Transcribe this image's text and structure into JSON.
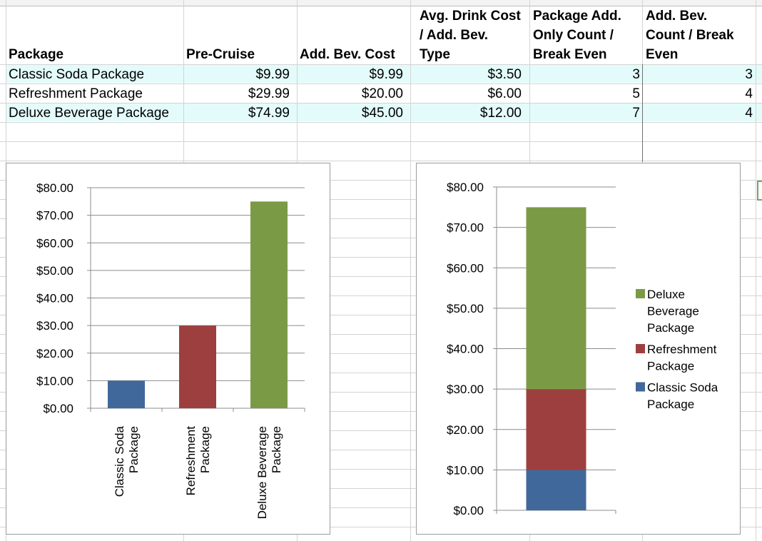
{
  "table": {
    "headers": [
      [
        "Package"
      ],
      [
        "Pre-Cruise"
      ],
      [
        "Add. Bev. Cost"
      ],
      [
        "Avg. Drink Cost",
        "/ Add. Bev.",
        "Type"
      ],
      [
        "Package Add.",
        "Only Count /",
        "Break Even"
      ],
      [
        "Add. Bev.",
        "Count / Break",
        "Even"
      ]
    ],
    "rows": [
      [
        "Classic Soda Package",
        "$9.99",
        "$9.99",
        "$3.50",
        "3",
        "3"
      ],
      [
        "Refreshment Package",
        "$29.99",
        "$20.00",
        "$6.00",
        "5",
        "4"
      ],
      [
        "Deluxe Beverage Package",
        "$74.99",
        "$45.00",
        "$12.00",
        "7",
        "4"
      ]
    ]
  },
  "chart_data": [
    {
      "type": "bar",
      "categories": [
        "Classic Soda Package",
        "Refreshment Package",
        "Deluxe Beverage Package"
      ],
      "category_lines": [
        [
          "Classic Soda",
          "Package"
        ],
        [
          "Refreshment",
          "Package"
        ],
        [
          "Deluxe Beverage",
          "Package"
        ]
      ],
      "values": [
        9.99,
        29.99,
        74.99
      ],
      "colors": [
        "#41689a",
        "#9e3f3f",
        "#7b9a46"
      ],
      "ylim": [
        0,
        80
      ],
      "yticks": [
        "$0.00",
        "$10.00",
        "$20.00",
        "$30.00",
        "$40.00",
        "$50.00",
        "$60.00",
        "$70.00",
        "$80.00"
      ],
      "grid": true,
      "legend": "none"
    },
    {
      "type": "bar",
      "stacked": true,
      "categories": [
        ""
      ],
      "series": [
        {
          "name": "Classic Soda Package",
          "values": [
            9.99
          ],
          "color": "#41689a",
          "legend_lines": [
            "Classic Soda",
            "Package"
          ]
        },
        {
          "name": "Refreshment Package",
          "values": [
            20.0
          ],
          "color": "#9e3f3f",
          "legend_lines": [
            "Refreshment",
            "Package"
          ]
        },
        {
          "name": "Deluxe Beverage Package",
          "values": [
            45.0
          ],
          "color": "#7b9a46",
          "legend_lines": [
            "Deluxe",
            "Beverage",
            "Package"
          ]
        }
      ],
      "ylim": [
        0,
        80
      ],
      "yticks": [
        "$0.00",
        "$10.00",
        "$20.00",
        "$30.00",
        "$40.00",
        "$50.00",
        "$60.00",
        "$70.00",
        "$80.00"
      ],
      "grid": true,
      "legend": "right"
    }
  ]
}
